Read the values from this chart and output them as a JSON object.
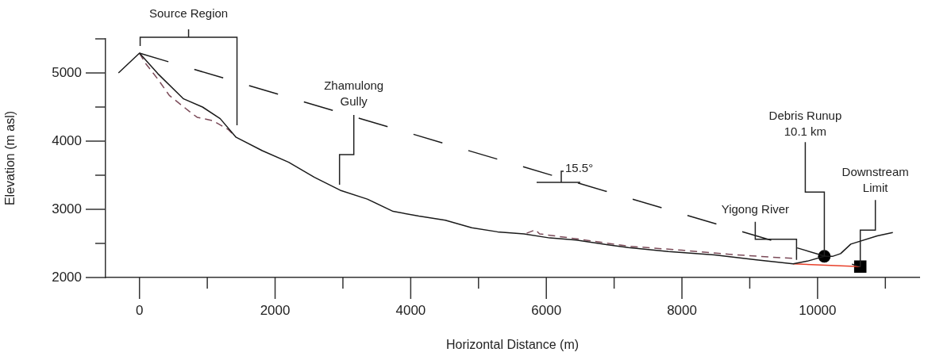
{
  "chart_data": {
    "type": "line",
    "xlabel": "Horizontal Distance (m)",
    "ylabel": "Elevation (m asl)",
    "xlim": [
      -500,
      11500
    ],
    "xticks": [
      0,
      {
        "value": 1000,
        "label": null
      },
      2000,
      {
        "value": 3000,
        "label": null
      },
      4000,
      {
        "value": 5000,
        "label": null
      },
      6000,
      {
        "value": 7000,
        "label": null
      },
      8000,
      {
        "value": 9000,
        "label": null
      },
      10000,
      {
        "value": 11000,
        "label": null
      }
    ],
    "ylim": [
      2000,
      5500
    ],
    "yticks": [
      2000,
      {
        "value": 2500,
        "label": null
      },
      3000,
      {
        "value": 3500,
        "label": null
      },
      4000,
      {
        "value": 4500,
        "label": null
      },
      5000,
      {
        "value": 5500,
        "label": null
      }
    ],
    "grid": false,
    "legend": false,
    "series": [
      {
        "color": "#1a1a1a",
        "line_style": "solid",
        "x": [
          -310,
          0,
          270,
          650,
          930,
          1190,
          1420,
          1810,
          2200,
          2580,
          2960,
          3360,
          3740,
          4120,
          4510,
          4900,
          5280,
          5670,
          6050,
          6440,
          6830,
          7210,
          7800,
          8480,
          9100,
          9640,
          9850,
          10100,
          10220,
          10340,
          10490,
          10880,
          11110
        ],
        "values": [
          5000,
          5290,
          4990,
          4620,
          4500,
          4330,
          4060,
          3860,
          3690,
          3470,
          3280,
          3150,
          2970,
          2900,
          2840,
          2730,
          2670,
          2640,
          2580,
          2550,
          2490,
          2440,
          2380,
          2330,
          2260,
          2200,
          2240,
          2310,
          2310,
          2350,
          2490,
          2610,
          2660
        ]
      },
      {
        "color": "#7b4a58",
        "line_style": "dashed",
        "x": [
          0,
          90,
          270,
          440,
          730,
          850,
          1080,
          1310,
          1420,
          3000,
          5710,
          5840,
          5900,
          6500,
          7200,
          8000,
          8700,
          9300,
          9640
        ],
        "values": [
          5290,
          5140,
          4910,
          4670,
          4440,
          4350,
          4300,
          4170,
          4060,
          null,
          2650,
          2700,
          2640,
          2560,
          2460,
          2400,
          2340,
          2300,
          2280
        ]
      },
      {
        "color": "#1a1a1a",
        "line_style": "dashed",
        "x": [
          0,
          10630
        ],
        "values": [
          5290,
          2160
        ]
      },
      {
        "color": "#e8402a",
        "line_style": "solid",
        "x": [
          9640,
          10630
        ],
        "values": [
          2200,
          2160
        ]
      },
      {
        "type": "scatter",
        "color": "#000000",
        "marker": "circle",
        "x": [
          10100
        ],
        "values": [
          2310
        ]
      },
      {
        "type": "scatter",
        "color": "#000000",
        "marker": "square",
        "x": [
          10630
        ],
        "values": [
          2160
        ]
      }
    ],
    "annotations": [
      "Source Region",
      {
        "text": "Zhamulong\nGully",
        "x": 2950,
        "y": 3360
      },
      "15.5°",
      {
        "text": "Yigong River",
        "x": 9690,
        "y": 2260
      },
      {
        "text": "Debris Runup\n10.1 km",
        "x": 10100,
        "y": 2310
      },
      {
        "text": "Downstream\nLimit",
        "x": 10630,
        "y": 2160
      }
    ]
  }
}
